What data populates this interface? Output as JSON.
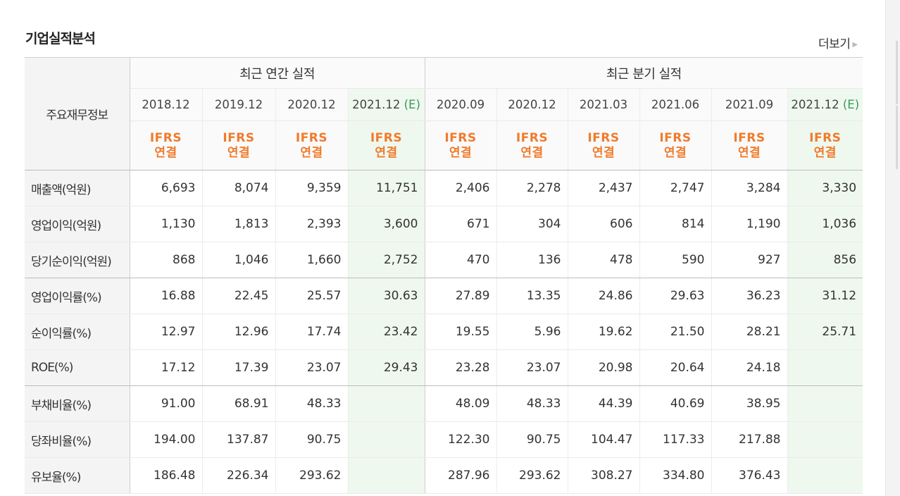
{
  "section_title": "기업실적분석",
  "more_label": "더보기",
  "header": {
    "row_label": "주요재무정보",
    "group_annual": "최근 연간 실적",
    "group_quarterly": "최근 분기 실적",
    "years_annual": [
      "2018.12",
      "2019.12",
      "2020.12",
      "2021.12"
    ],
    "years_quarterly": [
      "2020.09",
      "2020.12",
      "2021.03",
      "2021.06",
      "2021.09",
      "2021.12"
    ],
    "estimate_mark": "(E)",
    "ifrs_line1": "IFRS",
    "ifrs_line2": "연결"
  },
  "rows": [
    {
      "label": "매출액(억원)",
      "values": [
        "6,693",
        "8,074",
        "9,359",
        "11,751",
        "2,406",
        "2,278",
        "2,437",
        "2,747",
        "3,284",
        "3,330"
      ]
    },
    {
      "label": "영업이익(억원)",
      "values": [
        "1,130",
        "1,813",
        "2,393",
        "3,600",
        "671",
        "304",
        "606",
        "814",
        "1,190",
        "1,036"
      ]
    },
    {
      "label": "당기순이익(억원)",
      "values": [
        "868",
        "1,046",
        "1,660",
        "2,752",
        "470",
        "136",
        "478",
        "590",
        "927",
        "856"
      ]
    },
    {
      "label": "영업이익률(%)",
      "values": [
        "16.88",
        "22.45",
        "25.57",
        "30.63",
        "27.89",
        "13.35",
        "24.86",
        "29.63",
        "36.23",
        "31.12"
      ]
    },
    {
      "label": "순이익률(%)",
      "values": [
        "12.97",
        "12.96",
        "17.74",
        "23.42",
        "19.55",
        "5.96",
        "19.62",
        "21.50",
        "28.21",
        "25.71"
      ]
    },
    {
      "label": "ROE(%)",
      "values": [
        "17.12",
        "17.39",
        "23.07",
        "29.43",
        "23.28",
        "23.07",
        "20.98",
        "20.64",
        "24.18",
        ""
      ]
    },
    {
      "label": "부채비율(%)",
      "values": [
        "91.00",
        "68.91",
        "48.33",
        "",
        "48.09",
        "48.33",
        "44.39",
        "40.69",
        "38.95",
        ""
      ]
    },
    {
      "label": "당좌비율(%)",
      "values": [
        "194.00",
        "137.87",
        "90.75",
        "",
        "122.30",
        "90.75",
        "104.47",
        "117.33",
        "217.88",
        ""
      ]
    },
    {
      "label": "유보율(%)",
      "values": [
        "186.48",
        "226.34",
        "293.62",
        "",
        "287.96",
        "293.62",
        "308.27",
        "334.80",
        "376.43",
        ""
      ]
    }
  ]
}
